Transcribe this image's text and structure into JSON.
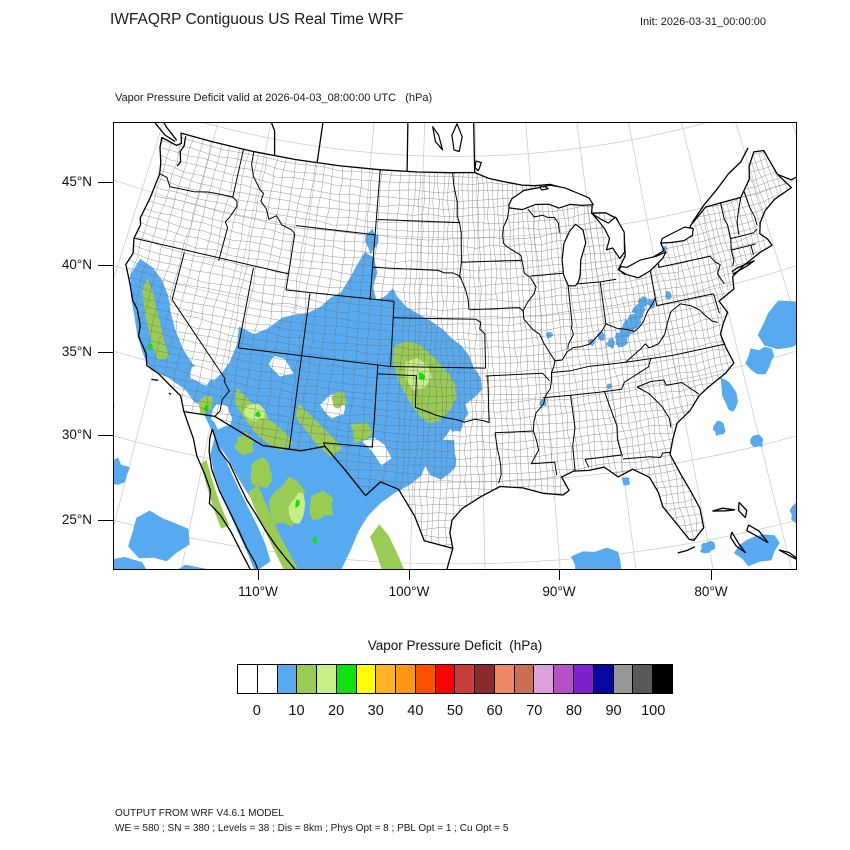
{
  "header": {
    "title": "IWFAQRP Contiguous US Real Time WRF",
    "init_label": "Init: 2026-03-31_00:00:00"
  },
  "subtitle": "Vapor Pressure Deficit valid at 2026-04-03_08:00:00 UTC   (hPa)",
  "axes": {
    "y_tick_labels": [
      "45°N",
      "40°N",
      "35°N",
      "30°N",
      "25°N"
    ],
    "x_tick_labels": [
      "110°W",
      "100°W",
      "90°W",
      "80°W"
    ]
  },
  "colorbar": {
    "title": "Vapor Pressure Deficit  (hPa)",
    "tick_labels": [
      "0",
      "10",
      "20",
      "30",
      "40",
      "50",
      "60",
      "70",
      "80",
      "90",
      "100"
    ],
    "cell_colors": [
      "#FFFFFF",
      "#FFFFFF",
      "#58AAF0",
      "#9ACC55",
      "#C8EE88",
      "#10E010",
      "#FFFF00",
      "#FFB428",
      "#FF9614",
      "#FF5000",
      "#FF0000",
      "#C83C3C",
      "#8A2A2A",
      "#EE8866",
      "#CC6E55",
      "#DCA0DC",
      "#B450C8",
      "#7B22CC",
      "#0808A0",
      "#989898",
      "#585858",
      "#000000"
    ]
  },
  "footer": {
    "line1": "OUTPUT FROM WRF V4.6.1 MODEL",
    "line2": "WE = 580 ; SN = 380 ; Levels = 38 ; Dis = 8km ; Phys Opt = 8 ; PBL Opt = 1 ; Cu Opt = 5"
  },
  "chart_data": {
    "type": "heatmap",
    "title": "IWFAQRP Contiguous US Real Time WRF",
    "subtitle": "Vapor Pressure Deficit valid at 2026-04-03_08:00:00 UTC (hPa)",
    "variable": "Vapor Pressure Deficit",
    "units": "hPa",
    "init_time": "2026-03-31_00:00:00",
    "valid_time": "2026-04-03_08:00:00 UTC",
    "levels_hpa": [
      0,
      5,
      10,
      15,
      20,
      25,
      30,
      35,
      40,
      45,
      50,
      55,
      60,
      65,
      70,
      75,
      80,
      85,
      90,
      95,
      100
    ],
    "palette": [
      "#FFFFFF",
      "#FFFFFF",
      "#58AAF0",
      "#9ACC55",
      "#C8EE88",
      "#10E010",
      "#FFFF00",
      "#FFB428",
      "#FF9614",
      "#FF5000",
      "#FF0000",
      "#C83C3C",
      "#8A2A2A",
      "#EE8866",
      "#CC6E55",
      "#DCA0DC",
      "#B450C8",
      "#7B22CC",
      "#0808A0",
      "#989898",
      "#585858",
      "#000000"
    ],
    "x_ticks_deg_w": [
      110,
      100,
      90,
      80
    ],
    "y_ticks_deg_n": [
      45,
      40,
      35,
      30,
      25
    ],
    "grid": true,
    "legend_position": "bottom",
    "observed_regions": [
      {
        "value_range_hpa": "5-10",
        "color": "#58AAF0",
        "areas": [
          "California Central Valley and coast ranges",
          "Southern Nevada / Utah / Arizona / New Mexico / Colorado",
          "High Plains: western Kansas, Oklahoma, west Texas up to South Dakota",
          "Northern Mexico and Gulf of California",
          "Ohio Valley / Appalachian patches (WV, OH, KY)",
          "Offshore Atlantic, Gulf of Mexico and Pacific patches"
        ]
      },
      {
        "value_range_hpa": "10-15",
        "color": "#9ACC55",
        "areas": [
          "California Central Valley core",
          "Southern Arizona and New Mexico",
          "Sierra Madre Occidental (Sonora/Chihuahua, Mexico)",
          "Northeastern Mexico",
          "Southwest Kansas / Oklahoma panhandle / northwest Texas"
        ]
      },
      {
        "value_range_hpa": "15-20",
        "color": "#C8EE88",
        "areas": [
          "Core of the Kansas-Oklahoma maximum",
          "South-central Arizona",
          "Chihuahua highlands"
        ]
      },
      {
        "value_range_hpa": "20-25",
        "color": "#10E010",
        "areas": [
          "Isolated spots in Oklahoma panhandle, central Arizona, central California, Imperial Valley and Mexico"
        ]
      },
      {
        "value_range_hpa": "0-5",
        "color": "#FFFFFF",
        "areas": [
          "Most of the eastern, central and northern US, Canada, oceans"
        ]
      }
    ],
    "map": {
      "projection": "Lambert conformal",
      "extent_lon_w": [
        125,
        67
      ],
      "extent_lat_n": [
        22,
        52
      ],
      "features": [
        "US state borders",
        "US county borders",
        "coastlines",
        "Great Lakes",
        "graticule every 5 degrees"
      ]
    }
  }
}
